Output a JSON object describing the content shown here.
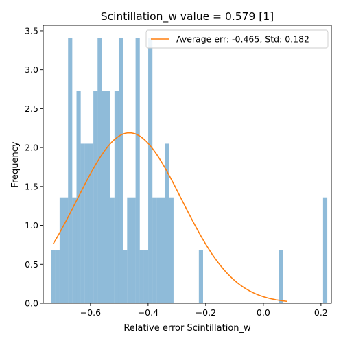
{
  "chart_data": {
    "type": "bar",
    "title": "Scintillation_w value = 0.579 [1]",
    "xlabel": "Relative error Scintillation_w",
    "ylabel": "Frequency",
    "xlim": [
      -0.764,
      0.236
    ],
    "ylim": [
      0,
      3.57
    ],
    "xticks": [
      -0.6,
      -0.4,
      -0.2,
      0.0,
      0.2
    ],
    "xtick_labels": [
      "−0.6",
      "−0.4",
      "−0.2",
      "0.0",
      "0.2"
    ],
    "yticks": [
      0,
      0.5,
      1.0,
      1.5,
      2.0,
      2.5,
      3.0,
      3.5
    ],
    "ytick_labels": [
      "0.0",
      "0.5",
      "1.0",
      "1.5",
      "2.0",
      "2.5",
      "3.0",
      "3.5"
    ],
    "bar_color": "#1f77b4",
    "bar_alpha": 0.5,
    "histogram": {
      "bin_width": 0.01464,
      "bars": [
        {
          "x0": -0.7363,
          "height": 0.68
        },
        {
          "x0": -0.7217,
          "height": 0.68
        },
        {
          "x0": -0.7071,
          "height": 1.36
        },
        {
          "x0": -0.6924,
          "height": 1.36
        },
        {
          "x0": -0.6778,
          "height": 3.41
        },
        {
          "x0": -0.6631,
          "height": 1.36
        },
        {
          "x0": -0.6485,
          "height": 2.73
        },
        {
          "x0": -0.6339,
          "height": 2.05
        },
        {
          "x0": -0.6192,
          "height": 2.05
        },
        {
          "x0": -0.6046,
          "height": 2.05
        },
        {
          "x0": -0.5899,
          "height": 2.73
        },
        {
          "x0": -0.5753,
          "height": 3.41
        },
        {
          "x0": -0.5607,
          "height": 2.73
        },
        {
          "x0": -0.546,
          "height": 2.73
        },
        {
          "x0": -0.5314,
          "height": 1.36
        },
        {
          "x0": -0.5167,
          "height": 2.73
        },
        {
          "x0": -0.5021,
          "height": 3.41
        },
        {
          "x0": -0.4875,
          "height": 0.68
        },
        {
          "x0": -0.4728,
          "height": 1.36
        },
        {
          "x0": -0.4582,
          "height": 1.36
        },
        {
          "x0": -0.4435,
          "height": 3.41
        },
        {
          "x0": -0.4289,
          "height": 0.68
        },
        {
          "x0": -0.4143,
          "height": 0.68
        },
        {
          "x0": -0.3996,
          "height": 3.41
        },
        {
          "x0": -0.385,
          "height": 1.36
        },
        {
          "x0": -0.3703,
          "height": 1.36
        },
        {
          "x0": -0.3557,
          "height": 1.36
        },
        {
          "x0": -0.3411,
          "height": 2.05
        },
        {
          "x0": -0.3264,
          "height": 1.36
        },
        {
          "x0": -0.2239,
          "height": 0.68
        },
        {
          "x0": 0.0536,
          "height": 0.68
        },
        {
          "x0": 0.2072,
          "height": 1.36
        }
      ]
    },
    "fit_curve": {
      "name": "Average err: -0.465, Std: 0.182",
      "color": "#ff7f0e",
      "mean": -0.465,
      "std": 0.182,
      "peak": 2.19,
      "x_range": [
        -0.7291,
        0.0828
      ]
    },
    "legend_position": "upper right",
    "grid": false
  }
}
